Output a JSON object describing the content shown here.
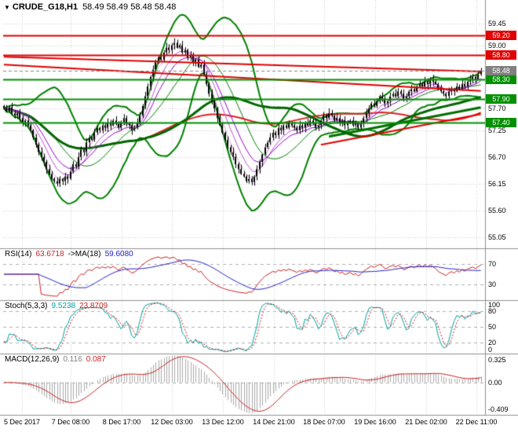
{
  "window": {
    "symbol": "CRUDE_G18,H1",
    "quote": "58.49 58.49 58.48 58.48",
    "dropdown_icon": "▼"
  },
  "colors": {
    "background": "#ffffff",
    "grid": "#cccccc",
    "candle_up": "#ffffff",
    "candle_down": "#000000",
    "candle_border": "#000000",
    "bollinger": "#008000",
    "ma_fan": [
      "#dda0dd",
      "#ba55d3",
      "#9400d3"
    ],
    "ma_green": "#006600",
    "ma_red": "#dd2222",
    "level_red": "#e00000",
    "level_green": "#009000",
    "trend_red": "#e00000",
    "trend_green": "#007000",
    "current_badge": "#808080",
    "rsi_main": "#cc2222",
    "rsi_ma": "#2222cc",
    "stoch_main": "#00a3a3",
    "stoch_signal": "#cc2222",
    "macd_hist": "#a9a9a9",
    "macd_value": "#808080",
    "macd_signal": "#cc2222",
    "axis_text": "#000000"
  },
  "chart_data": {
    "type": "candlestick",
    "symbol": "CRUDE_G18,H1",
    "timeframe": "H1",
    "y_range": [
      54.82,
      59.93
    ],
    "y_ticks": [
      "59.45",
      "59.00",
      "57.70",
      "57.25",
      "56.70",
      "56.15",
      "55.60",
      "55.05"
    ],
    "x_labels": [
      "5 Dec 2017",
      "7 Dec 08:00",
      "8 Dec 17:00",
      "12 Dec 03:00",
      "13 Dec 12:00",
      "14 Dec 21:00",
      "18 Dec 07:00",
      "19 Dec 16:00",
      "21 Dec 02:00",
      "22 Dec 11:00"
    ],
    "closes": [
      57.7,
      57.65,
      57.72,
      57.6,
      57.55,
      57.6,
      57.5,
      57.42,
      57.45,
      57.35,
      57.25,
      57.1,
      56.95,
      56.8,
      56.7,
      56.6,
      56.45,
      56.35,
      56.25,
      56.2,
      56.15,
      56.25,
      56.2,
      56.3,
      56.25,
      56.4,
      56.55,
      56.5,
      56.7,
      56.85,
      56.8,
      57.0,
      57.1,
      57.05,
      57.2,
      57.3,
      57.25,
      57.35,
      57.3,
      57.4,
      57.35,
      57.45,
      57.38,
      57.3,
      57.42,
      57.5,
      57.4,
      57.35,
      57.25,
      57.3,
      57.4,
      57.55,
      57.75,
      57.95,
      58.15,
      58.35,
      58.5,
      58.65,
      58.75,
      58.7,
      58.85,
      58.95,
      58.9,
      59.0,
      59.05,
      58.95,
      59.0,
      58.85,
      58.9,
      58.75,
      58.8,
      58.65,
      58.7,
      58.55,
      58.6,
      58.4,
      58.2,
      58.0,
      57.85,
      57.7,
      57.5,
      57.35,
      57.2,
      57.05,
      56.9,
      56.8,
      56.7,
      56.55,
      56.45,
      56.35,
      56.3,
      56.2,
      56.25,
      56.18,
      56.3,
      56.45,
      56.6,
      56.75,
      56.9,
      57.0,
      57.1,
      57.2,
      57.15,
      57.3,
      57.25,
      57.35,
      57.3,
      57.4,
      57.35,
      57.3,
      57.25,
      57.35,
      57.3,
      57.4,
      57.35,
      57.45,
      57.4,
      57.3,
      57.35,
      57.45,
      57.55,
      57.5,
      57.6,
      57.55,
      57.45,
      57.5,
      57.4,
      57.45,
      57.35,
      57.4,
      57.45,
      57.35,
      57.4,
      57.3,
      57.38,
      57.5,
      57.6,
      57.7,
      57.8,
      57.75,
      57.85,
      57.95,
      57.9,
      57.8,
      57.85,
      57.95,
      58.0,
      57.95,
      58.05,
      58.0,
      57.9,
      57.95,
      58.05,
      58.1,
      58.05,
      58.15,
      58.2,
      58.15,
      58.25,
      58.2,
      58.3,
      58.25,
      58.2,
      58.1,
      58.05,
      58.0,
      57.95,
      58.05,
      58.1,
      58.05,
      58.15,
      58.1,
      58.2,
      58.15,
      58.25,
      58.3,
      58.35,
      58.3,
      58.4,
      58.48
    ],
    "levels": [
      {
        "price": 59.2,
        "label": "59.20",
        "color": "red"
      },
      {
        "price": 58.8,
        "label": "58.80",
        "color": "red"
      },
      {
        "price": 58.3,
        "label": "58.30",
        "color": "green"
      },
      {
        "price": 57.9,
        "label": "57.90",
        "color": "green"
      },
      {
        "price": 57.4,
        "label": "57.40",
        "color": "green"
      }
    ],
    "current_price": {
      "value": 58.48,
      "label": "58.48"
    },
    "trendlines": [
      {
        "color": "red",
        "width": 2,
        "from": {
          "i": 0,
          "price": 58.76
        },
        "to": {
          "i": 179,
          "price": 58.46
        }
      },
      {
        "color": "red",
        "width": 2,
        "from": {
          "i": 0,
          "price": 58.6
        },
        "to": {
          "i": 179,
          "price": 58.06
        }
      },
      {
        "color": "red",
        "width": 2,
        "from": {
          "i": 119,
          "price": 56.95
        },
        "to": {
          "i": 179,
          "price": 57.58
        }
      },
      {
        "color": "green",
        "width": 3,
        "from": {
          "i": 122,
          "price": 57.12
        },
        "to": {
          "i": 179,
          "price": 57.72
        }
      }
    ],
    "overlays": {
      "bollinger_period": 20,
      "bollinger_dev": 2,
      "ma_fan_periods": [
        4,
        8,
        13
      ],
      "ma_green_period": 55,
      "ma_red_period": 90
    },
    "panels": {
      "rsi": {
        "name": "RSI(14)",
        "value": "63.6718",
        "ma_name": "->MA(18)",
        "ma_value": "59.6080",
        "period": 14,
        "ma_period": 18,
        "levels": [
          70,
          30
        ],
        "range": [
          0,
          100
        ]
      },
      "stoch": {
        "name": "Stoch(5,3,3)",
        "value": "9.5238",
        "signal_value": "23.8709",
        "k": 5,
        "d": 3,
        "slowing": 3,
        "ticks": [
          100,
          80,
          50,
          20,
          0
        ],
        "levels": [
          80,
          50,
          20
        ],
        "range": [
          0,
          100
        ]
      },
      "macd": {
        "name": "MACD(12,26,9)",
        "value": "0.116",
        "signal_value": "0.087",
        "fast": 12,
        "slow": 26,
        "signal": 9,
        "ticks": [
          "0.325",
          "0.00",
          "-0.409"
        ]
      }
    }
  }
}
